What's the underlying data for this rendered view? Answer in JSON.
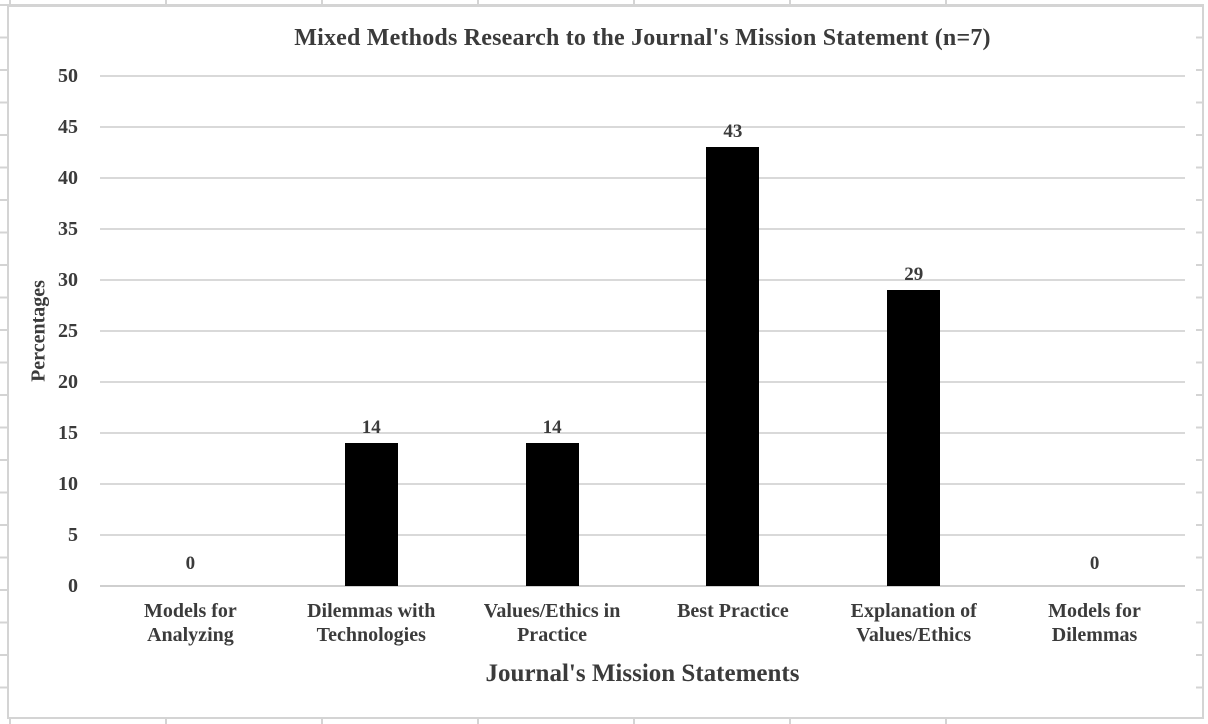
{
  "chart_data": {
    "type": "bar",
    "title": "Mixed Methods Research to the Journal's Mission Statement (n=7)",
    "xlabel": "Journal's Mission Statements",
    "ylabel": "Percentages",
    "categories": [
      "Models for Analyzing",
      "Dilemmas with Technologies",
      "Values/Ethics in Practice",
      "Best Practice",
      "Explanation of Values/Ethics",
      "Models for Dilemmas"
    ],
    "values": [
      0,
      14,
      14,
      43,
      29,
      0
    ],
    "data_labels": [
      "0",
      "14",
      "14",
      "43",
      "29",
      "0"
    ],
    "yticks": [
      0,
      5,
      10,
      15,
      20,
      25,
      30,
      35,
      40,
      45,
      50
    ],
    "ylim": [
      0,
      50
    ],
    "grid": true,
    "legend": false,
    "bar_color": "#000000",
    "text_color": "#3b3b3b",
    "gridline_color": "#d9d9d9",
    "baseline_color": "#cfcfcf",
    "frame_color": "#d4d4d4",
    "background": "#ffffff"
  }
}
